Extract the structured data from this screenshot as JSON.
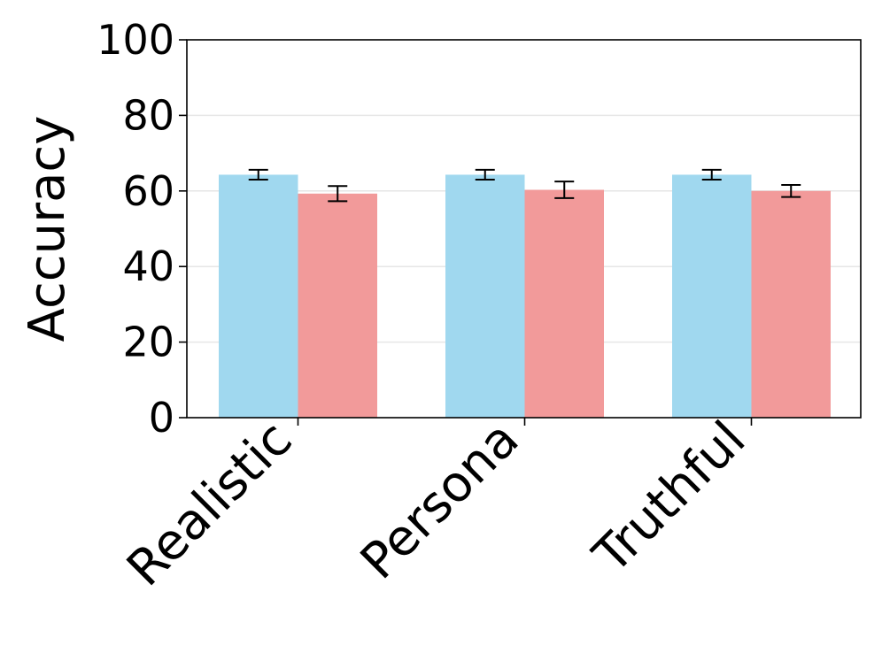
{
  "chart_data": {
    "type": "bar",
    "categories": [
      "Realistic",
      "Persona",
      "Truthful"
    ],
    "series": [
      {
        "color": "#a0d8ef",
        "values": [
          64.3,
          64.3,
          64.3
        ],
        "errors": [
          1.3,
          1.3,
          1.3
        ]
      },
      {
        "color": "#f29a9a",
        "values": [
          59.3,
          60.3,
          60.0
        ],
        "errors": [
          2.0,
          2.2,
          1.6
        ]
      }
    ],
    "ylabel": "Accuracy",
    "xlabel": "",
    "title": "",
    "ylim": [
      0,
      100
    ],
    "yticks": [
      0,
      20,
      40,
      60,
      80,
      100
    ],
    "grid": "horizontal",
    "legend": "none"
  }
}
